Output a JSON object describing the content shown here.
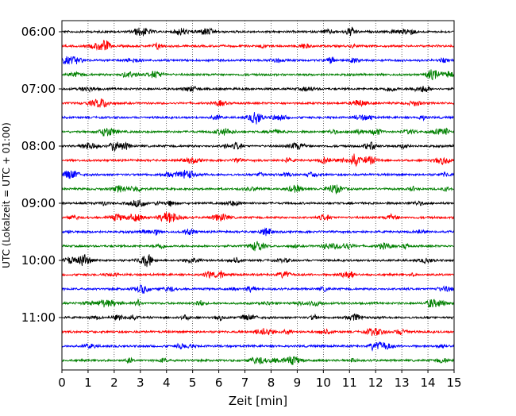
{
  "chart_data": {
    "type": "line",
    "title": "",
    "xlabel": "Zeit  [min]",
    "ylabel": "UTC (Lokalzeit = UTC + 01:00)",
    "xlim": [
      0,
      15
    ],
    "x_ticks": [
      "0",
      "1",
      "2",
      "3",
      "4",
      "5",
      "6",
      "7",
      "8",
      "9",
      "10",
      "11",
      "12",
      "13",
      "14",
      "15"
    ],
    "y_tick_labels": [
      "06:00",
      "07:00",
      "08:00",
      "09:00",
      "10:00",
      "11:00"
    ],
    "grid": "vertical dotted",
    "row_interval_min": 15,
    "row_count": 24,
    "trace_colors": [
      "#000000",
      "#ff0000",
      "#0000ff",
      "#008000"
    ],
    "series": [
      {
        "start": "06:00",
        "color": "#000000"
      },
      {
        "start": "06:15",
        "color": "#ff0000"
      },
      {
        "start": "06:30",
        "color": "#0000ff"
      },
      {
        "start": "06:45",
        "color": "#008000"
      },
      {
        "start": "07:00",
        "color": "#000000"
      },
      {
        "start": "07:15",
        "color": "#ff0000"
      },
      {
        "start": "07:30",
        "color": "#0000ff"
      },
      {
        "start": "07:45",
        "color": "#008000"
      },
      {
        "start": "08:00",
        "color": "#000000"
      },
      {
        "start": "08:15",
        "color": "#ff0000"
      },
      {
        "start": "08:30",
        "color": "#0000ff"
      },
      {
        "start": "08:45",
        "color": "#008000"
      },
      {
        "start": "09:00",
        "color": "#000000"
      },
      {
        "start": "09:15",
        "color": "#ff0000"
      },
      {
        "start": "09:30",
        "color": "#0000ff"
      },
      {
        "start": "09:45",
        "color": "#008000"
      },
      {
        "start": "10:00",
        "color": "#000000"
      },
      {
        "start": "10:15",
        "color": "#ff0000"
      },
      {
        "start": "10:30",
        "color": "#0000ff"
      },
      {
        "start": "10:45",
        "color": "#008000"
      },
      {
        "start": "11:00",
        "color": "#000000"
      },
      {
        "start": "11:15",
        "color": "#ff0000"
      },
      {
        "start": "11:30",
        "color": "#0000ff"
      },
      {
        "start": "11:45",
        "color": "#008000"
      }
    ]
  }
}
